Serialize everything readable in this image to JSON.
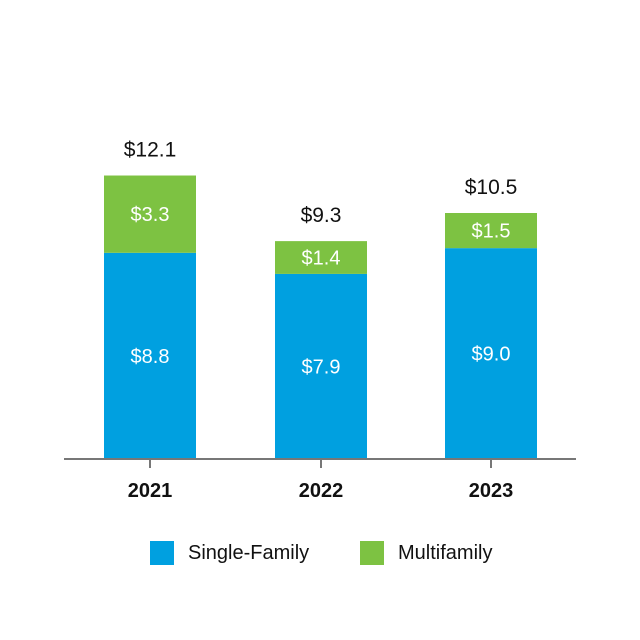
{
  "chart_data": {
    "type": "bar",
    "stacked": true,
    "categories": [
      "2021",
      "2022",
      "2023"
    ],
    "series": [
      {
        "name": "Single-Family",
        "values": [
          8.8,
          7.9,
          9.0
        ],
        "labels": [
          "$8.8",
          "$7.9",
          "$9.0"
        ],
        "color": "#00a0e0"
      },
      {
        "name": "Multifamily",
        "values": [
          3.3,
          1.4,
          1.5
        ],
        "labels": [
          "$3.3",
          "$1.4",
          "$1.5"
        ],
        "color": "#7dc242"
      }
    ],
    "totals": [
      12.1,
      9.3,
      10.5
    ],
    "total_labels": [
      "$12.1",
      "$9.3",
      "$10.5"
    ],
    "ylim": [
      0,
      14
    ],
    "grid": false,
    "legend_position": "bottom",
    "axis_color": "#777777"
  }
}
